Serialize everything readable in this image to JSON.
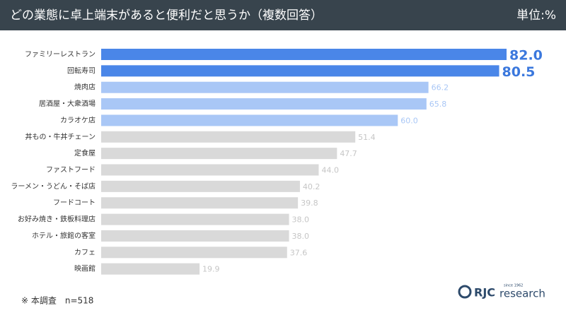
{
  "chart_data": {
    "type": "barh",
    "title": "どの業態に卓上端末があると便利だと思うか（複数回答）",
    "unit": "単位:%",
    "categories": [
      "ファミリーレストラン",
      "回転寿司",
      "焼肉店",
      "居酒屋・大衆酒場",
      "カラオケ店",
      "丼もの・牛丼チェーン",
      "定食屋",
      "ファストフード",
      "ラーメン・うどん・そば店",
      "フードコート",
      "お好み焼き・鉄板料理店",
      "ホテル・旅館の客室",
      "カフェ",
      "映画館"
    ],
    "values": [
      82.0,
      80.5,
      66.2,
      65.8,
      60.0,
      51.4,
      47.7,
      44.0,
      40.2,
      39.8,
      38.0,
      38.0,
      37.6,
      19.9
    ],
    "value_labels": [
      "82.0",
      "80.5",
      "66.2",
      "65.8",
      "60.0",
      "51.4",
      "47.7",
      "44.0",
      "40.2",
      "39.8",
      "38.0",
      "38.0",
      "37.6",
      "19.9"
    ],
    "colors": [
      "#4a86e8",
      "#4a86e8",
      "#a9c7f6",
      "#a9c7f6",
      "#a9c7f6",
      "#d9d9d9",
      "#d9d9d9",
      "#d9d9d9",
      "#d9d9d9",
      "#d9d9d9",
      "#d9d9d9",
      "#d9d9d9",
      "#d9d9d9",
      "#d9d9d9"
    ],
    "label_colors": [
      "#3b78dd",
      "#3b78dd",
      "#a9c7f6",
      "#a9c7f6",
      "#a9c7f6",
      "#c6c6c6",
      "#c6c6c6",
      "#c6c6c6",
      "#c6c6c6",
      "#c6c6c6",
      "#c6c6c6",
      "#c6c6c6",
      "#c6c6c6",
      "#c6c6c6"
    ],
    "footnote": "※ 本調査　n=518",
    "logo": {
      "mark": "RJC",
      "text": "research",
      "since": "since 1962"
    }
  }
}
